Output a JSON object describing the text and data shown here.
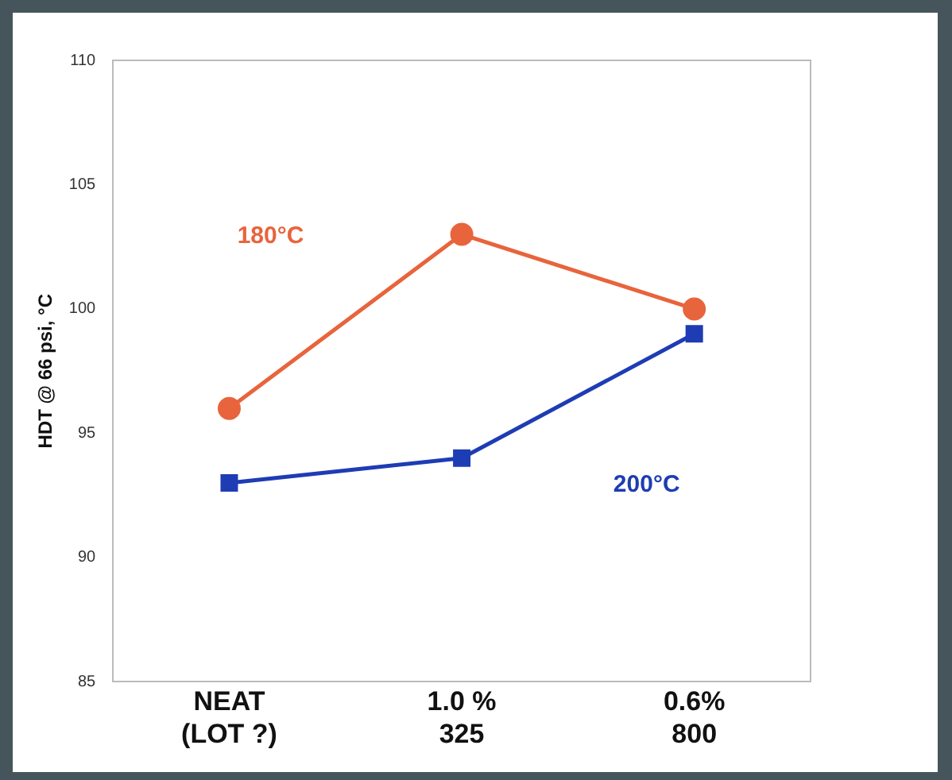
{
  "chart_data": {
    "type": "line",
    "ylabel": "HDT @ 66 psi, °C",
    "categories": [
      "NEAT\n(LOT ?)",
      "1.0 %\n325",
      "0.6%\n800"
    ],
    "series": [
      {
        "name": "180°C",
        "color": "#e8643c",
        "marker": "circle",
        "values": [
          96,
          103,
          100
        ]
      },
      {
        "name": "200°C",
        "color": "#1e3cb4",
        "marker": "square",
        "values": [
          93,
          94,
          99
        ]
      }
    ],
    "ylim": [
      85,
      110
    ],
    "yticks": [
      85,
      90,
      95,
      100,
      105,
      110
    ],
    "grid": false,
    "legend": false,
    "line_style": "solid"
  }
}
